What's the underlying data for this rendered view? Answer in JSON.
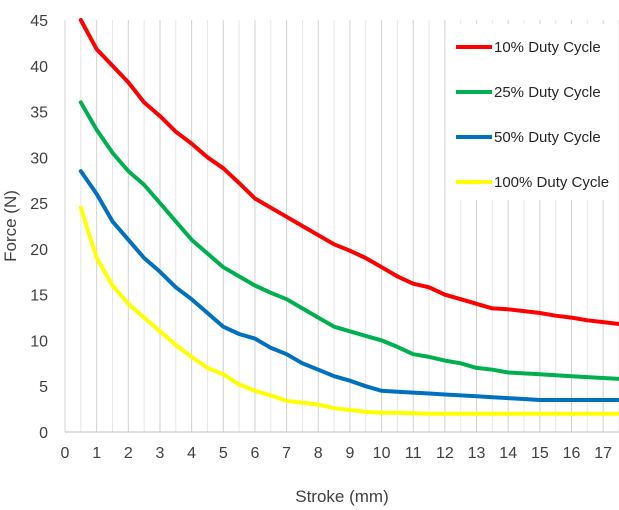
{
  "chart_data": {
    "type": "line",
    "xlabel": "Stroke (mm)",
    "ylabel": "Force (N)",
    "xlim": [
      0,
      17.5
    ],
    "ylim": [
      0,
      45
    ],
    "x_ticks": [
      "0",
      "1",
      "2",
      "3",
      "4",
      "5",
      "6",
      "7",
      "8",
      "9",
      "10",
      "11",
      "12",
      "13",
      "14",
      "15",
      "16",
      "17"
    ],
    "y_ticks": [
      "0",
      "5",
      "10",
      "15",
      "20",
      "25",
      "30",
      "35",
      "40",
      "45"
    ],
    "grid": "vertical",
    "legend": "top-right",
    "series": [
      {
        "name": "10% Duty Cycle",
        "color": "#ff0000",
        "x": [
          0.5,
          1,
          1.5,
          2,
          2.5,
          3,
          3.5,
          4,
          4.5,
          5,
          5.5,
          6,
          6.5,
          7,
          7.5,
          8,
          8.5,
          9,
          9.5,
          10,
          10.5,
          11,
          11.5,
          12,
          12.5,
          13,
          13.5,
          14,
          14.5,
          15,
          15.5,
          16,
          16.5,
          17,
          17.5
        ],
        "y": [
          45,
          41.8,
          40,
          38.2,
          36,
          34.5,
          32.8,
          31.5,
          30,
          28.8,
          27.2,
          25.5,
          24.5,
          23.5,
          22.5,
          21.5,
          20.5,
          19.8,
          19,
          18,
          17,
          16.2,
          15.8,
          15,
          14.5,
          14,
          13.5,
          13.4,
          13.2,
          13,
          12.7,
          12.5,
          12.2,
          12,
          11.8
        ]
      },
      {
        "name": "25% Duty Cycle",
        "color": "#00b050",
        "x": [
          0.5,
          1,
          1.5,
          2,
          2.5,
          3,
          3.5,
          4,
          4.5,
          5,
          5.5,
          6,
          6.5,
          7,
          7.5,
          8,
          8.5,
          9,
          9.5,
          10,
          10.5,
          11,
          11.5,
          12,
          12.5,
          13,
          13.5,
          14,
          14.5,
          15,
          15.5,
          16,
          16.5,
          17,
          17.5
        ],
        "y": [
          36,
          33,
          30.5,
          28.5,
          27,
          25,
          23,
          21,
          19.5,
          18,
          17,
          16,
          15.2,
          14.5,
          13.5,
          12.5,
          11.5,
          11,
          10.5,
          10,
          9.3,
          8.5,
          8.2,
          7.8,
          7.5,
          7,
          6.8,
          6.5,
          6.4,
          6.3,
          6.2,
          6.1,
          6,
          5.9,
          5.8
        ]
      },
      {
        "name": "50% Duty Cycle",
        "color": "#0070c0",
        "x": [
          0.5,
          1,
          1.5,
          2,
          2.5,
          3,
          3.5,
          4,
          4.5,
          5,
          5.5,
          6,
          6.5,
          7,
          7.5,
          8,
          8.5,
          9,
          9.5,
          10,
          10.5,
          11,
          11.5,
          12,
          12.5,
          13,
          13.5,
          14,
          14.5,
          15,
          15.5,
          16,
          16.5,
          17,
          17.5
        ],
        "y": [
          28.5,
          26,
          23,
          21,
          19,
          17.5,
          15.8,
          14.5,
          13,
          11.5,
          10.7,
          10.2,
          9.2,
          8.5,
          7.5,
          6.8,
          6.1,
          5.6,
          5,
          4.5,
          4.4,
          4.3,
          4.2,
          4.1,
          4,
          3.9,
          3.8,
          3.7,
          3.6,
          3.5,
          3.5,
          3.5,
          3.5,
          3.5,
          3.5
        ]
      },
      {
        "name": "100% Duty Cycle",
        "color": "#ffff00",
        "x": [
          0.5,
          1,
          1.5,
          2,
          2.5,
          3,
          3.5,
          4,
          4.5,
          5,
          5.5,
          6,
          6.5,
          7,
          7.5,
          8,
          8.5,
          9,
          9.5,
          10,
          10.5,
          11,
          11.5,
          12,
          12.5,
          13,
          13.5,
          14,
          14.5,
          15,
          15.5,
          16,
          16.5,
          17,
          17.5
        ],
        "y": [
          24.5,
          19,
          16,
          14,
          12.5,
          11,
          9.5,
          8.2,
          7,
          6.3,
          5.2,
          4.5,
          4,
          3.4,
          3.2,
          3,
          2.6,
          2.4,
          2.2,
          2.1,
          2.1,
          2.05,
          2,
          2,
          2,
          2,
          2,
          2,
          2,
          2,
          2,
          2,
          2,
          2,
          2
        ]
      }
    ]
  }
}
